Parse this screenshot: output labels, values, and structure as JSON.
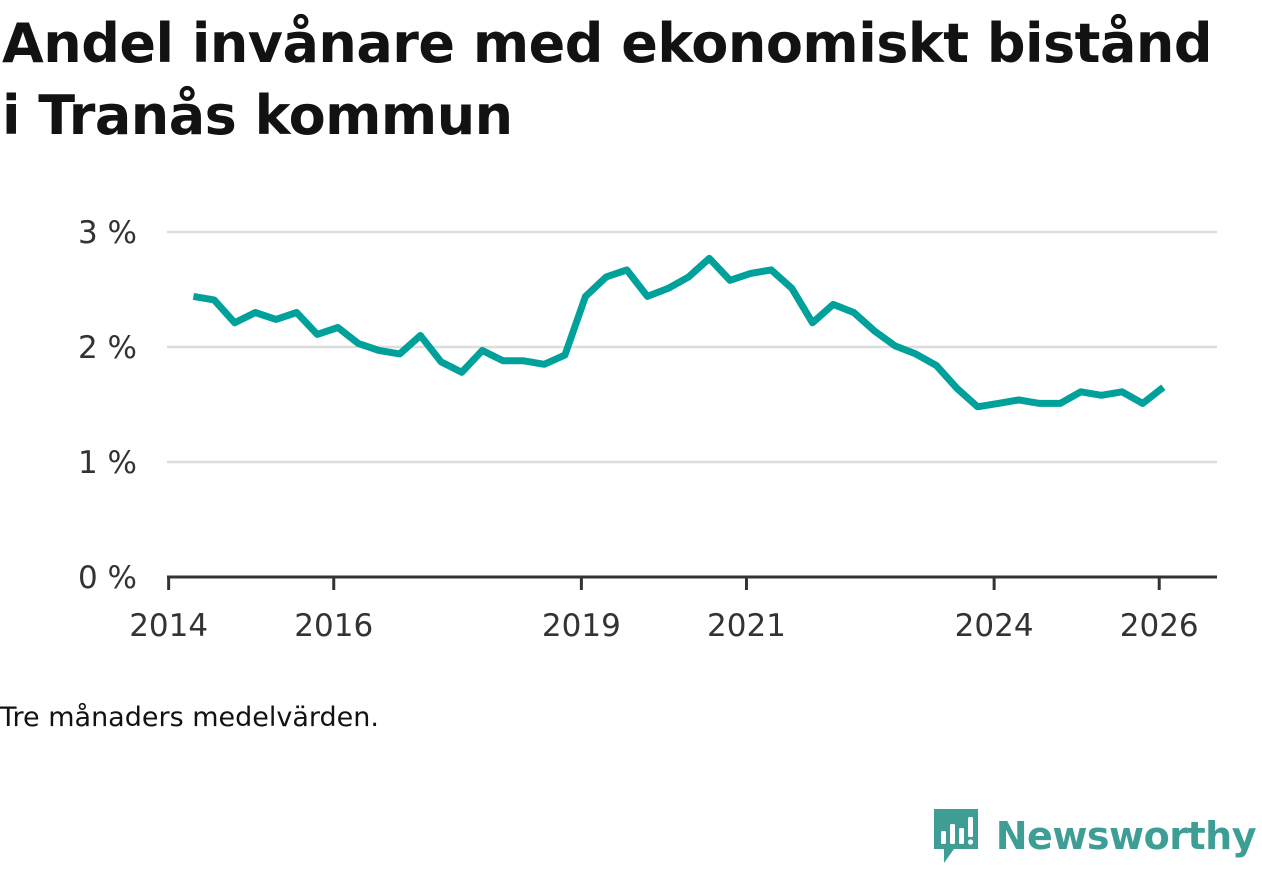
{
  "chart_data": {
    "type": "line",
    "title": "Andel invånare med ekonomiskt bistånd i Tranås kommun",
    "xlabel": "",
    "ylabel": "",
    "ylim": [
      0,
      3
    ],
    "xlim": [
      2013.98,
      2026.7
    ],
    "y_ticks": [
      {
        "value": 0,
        "label": "0 %"
      },
      {
        "value": 1,
        "label": "1 %"
      },
      {
        "value": 2,
        "label": "2 %"
      },
      {
        "value": 3,
        "label": "3 %"
      }
    ],
    "x_ticks": [
      {
        "value": 2014,
        "label": "2014"
      },
      {
        "value": 2016,
        "label": "2016"
      },
      {
        "value": 2019,
        "label": "2019"
      },
      {
        "value": 2021,
        "label": "2021"
      },
      {
        "value": 2024,
        "label": "2024"
      },
      {
        "value": 2026,
        "label": "2026"
      }
    ],
    "grid": true,
    "line_color": "#00a19a",
    "series": [
      {
        "name": "Andel invånare med ekonomiskt bistånd",
        "x": [
          2014.3,
          2014.55,
          2014.8,
          2015.05,
          2015.3,
          2015.55,
          2015.8,
          2016.05,
          2016.3,
          2016.55,
          2016.8,
          2017.05,
          2017.3,
          2017.55,
          2017.8,
          2018.05,
          2018.3,
          2018.55,
          2018.8,
          2019.05,
          2019.3,
          2019.55,
          2019.8,
          2020.05,
          2020.3,
          2020.55,
          2020.8,
          2021.05,
          2021.3,
          2021.55,
          2021.8,
          2022.05,
          2022.3,
          2022.55,
          2022.8,
          2023.05,
          2023.3,
          2023.55,
          2023.8,
          2024.05,
          2024.3,
          2024.55,
          2024.8,
          2025.05,
          2025.3,
          2025.55,
          2025.8,
          2026.05
        ],
        "values": [
          2.44,
          2.41,
          2.21,
          2.3,
          2.24,
          2.3,
          2.11,
          2.17,
          2.03,
          1.97,
          1.94,
          2.1,
          1.87,
          1.78,
          1.97,
          1.88,
          1.88,
          1.85,
          1.93,
          2.44,
          2.61,
          2.67,
          2.44,
          2.51,
          2.61,
          2.77,
          2.58,
          2.64,
          2.67,
          2.51,
          2.21,
          2.37,
          2.3,
          2.14,
          2.01,
          1.94,
          1.84,
          1.64,
          1.48,
          1.51,
          1.54,
          1.51,
          1.51,
          1.61,
          1.58,
          1.61,
          1.51,
          1.65
        ]
      }
    ]
  },
  "footnote": "Tre månaders medelvärden.",
  "brand": {
    "name": "Newsworthy",
    "color": "#3e9e96",
    "icon": "newsworthy-logo-icon"
  }
}
